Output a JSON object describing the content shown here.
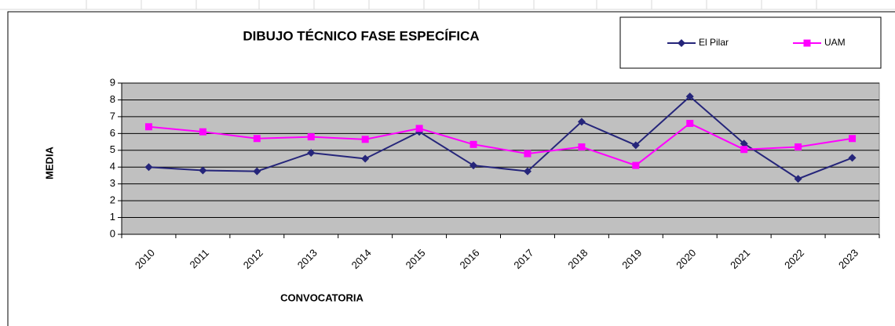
{
  "chart_data": {
    "type": "line",
    "title": "DIBUJO TÉCNICO FASE ESPECÍFICA",
    "x_label": "CONVOCATORIA",
    "y_label": "MEDIA",
    "categories": [
      "2010",
      "2011",
      "2012",
      "2013",
      "2014",
      "2015",
      "2016",
      "2017",
      "2018",
      "2019",
      "2020",
      "2021",
      "2022",
      "2023"
    ],
    "series": [
      {
        "name": "El Pilar",
        "color": "#25257a",
        "marker": "diamond",
        "values": [
          4.0,
          3.8,
          3.75,
          4.85,
          4.5,
          6.1,
          4.1,
          3.75,
          6.7,
          5.3,
          8.2,
          5.4,
          3.3,
          4.55
        ]
      },
      {
        "name": "UAM",
        "color": "#ff00ff",
        "marker": "square",
        "values": [
          6.4,
          6.1,
          5.7,
          5.8,
          5.65,
          6.3,
          5.35,
          4.8,
          5.2,
          4.1,
          6.6,
          5.05,
          5.2,
          5.7
        ]
      }
    ],
    "ylim": [
      0,
      9
    ],
    "yticks": [
      0,
      1,
      2,
      3,
      4,
      5,
      6,
      7,
      8,
      9
    ],
    "grid": true,
    "plot_background": "#c0c0c0",
    "legend": "top-right"
  }
}
